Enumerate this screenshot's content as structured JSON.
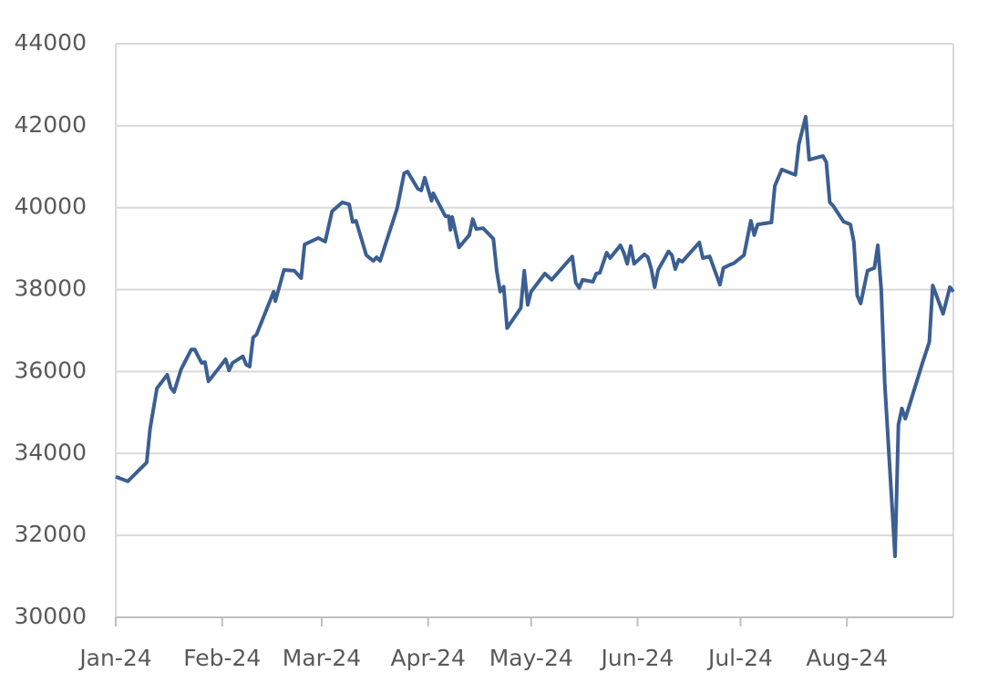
{
  "chart_data": {
    "type": "line",
    "x": [
      0,
      3.5,
      9,
      10,
      12,
      15,
      16,
      17,
      19,
      22,
      23,
      25,
      26,
      27,
      30,
      32,
      33,
      34,
      37,
      38,
      39,
      40,
      41,
      46,
      46.5,
      49,
      52,
      54,
      55,
      59,
      61,
      63,
      66,
      68,
      69,
      70,
      73,
      75,
      76,
      77,
      82,
      84,
      85,
      88,
      89,
      90,
      92,
      92.5,
      96,
      97,
      97.5,
      98,
      100,
      103,
      104,
      105,
      107,
      110,
      111,
      112,
      113,
      114,
      118,
      119,
      120,
      121,
      125,
      127,
      133,
      134,
      135,
      136,
      139,
      140,
      141,
      143,
      144,
      147,
      148,
      149,
      150,
      151,
      154,
      155,
      156,
      157,
      158,
      161,
      162,
      163,
      164,
      165,
      170,
      171,
      173,
      176,
      177,
      179,
      180,
      183,
      185,
      186,
      187,
      191,
      192,
      194,
      198,
      199,
      201,
      202,
      206,
      207,
      208,
      209,
      212,
      214,
      215,
      216,
      217,
      219,
      221,
      222,
      223,
      224,
      227,
      228,
      229,
      230,
      231,
      235,
      237,
      238,
      241,
      243,
      244
    ],
    "series": [
      {
        "color": "#3b5f92",
        "values": [
          33430,
          33320,
          33780,
          34610,
          35590,
          35920,
          35610,
          35500,
          36050,
          36540,
          36540,
          36210,
          36230,
          35760,
          36080,
          36300,
          36030,
          36210,
          36370,
          36170,
          36120,
          36830,
          36900,
          37950,
          37720,
          38480,
          38460,
          38280,
          39100,
          39260,
          39170,
          39910,
          40130,
          40080,
          39650,
          39680,
          38840,
          38700,
          38790,
          38700,
          39990,
          40840,
          40880,
          40460,
          40420,
          40730,
          40170,
          40350,
          39790,
          39790,
          39460,
          39770,
          39030,
          39330,
          39720,
          39480,
          39500,
          39240,
          38440,
          37950,
          38070,
          37060,
          37550,
          38460,
          37630,
          37950,
          38390,
          38240,
          38810,
          38170,
          38040,
          38240,
          38190,
          38390,
          38410,
          38900,
          38770,
          39080,
          38900,
          38630,
          39060,
          38630,
          38860,
          38790,
          38500,
          38060,
          38480,
          38930,
          38840,
          38500,
          38730,
          38680,
          39150,
          38770,
          38810,
          38120,
          38530,
          38610,
          38640,
          38840,
          39680,
          39330,
          39590,
          39640,
          40530,
          40930,
          40800,
          41550,
          42220,
          41170,
          41260,
          41110,
          40130,
          40040,
          39660,
          39590,
          39170,
          37860,
          37660,
          38460,
          38530,
          39080,
          37990,
          35720,
          31490,
          34700,
          35100,
          34850,
          35120,
          36210,
          36720,
          38100,
          37410,
          38060,
          37950
        ]
      }
    ],
    "xlim": [
      0,
      244
    ],
    "xticks": [
      {
        "value": 0,
        "label": "Jan-24"
      },
      {
        "value": 31,
        "label": "Feb-24"
      },
      {
        "value": 60,
        "label": "Mar-24"
      },
      {
        "value": 91,
        "label": "Apr-24"
      },
      {
        "value": 121,
        "label": "May-24"
      },
      {
        "value": 152,
        "label": "Jun-24"
      },
      {
        "value": 182,
        "label": "Jul-24"
      },
      {
        "value": 213,
        "label": "Aug-24"
      }
    ],
    "ylim": [
      30000,
      44000
    ],
    "yticks": [
      30000,
      32000,
      34000,
      36000,
      38000,
      40000,
      42000,
      44000
    ],
    "grid": true
  }
}
